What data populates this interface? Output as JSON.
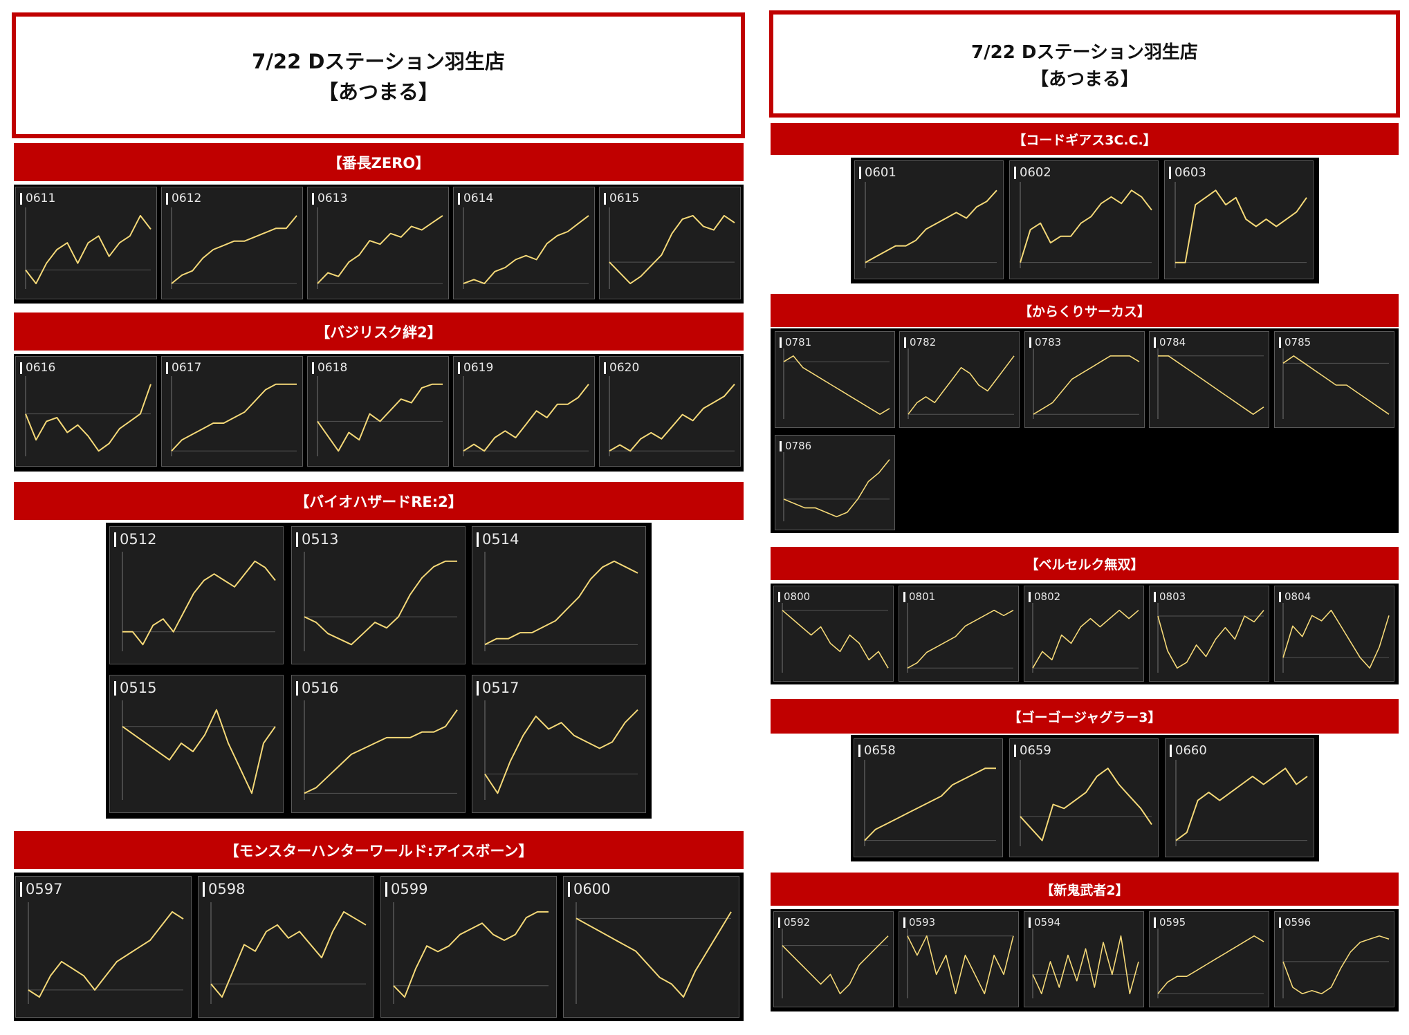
{
  "page": {
    "left_title": [
      "7/22 Dステーション羽生店",
      "【あつまる】"
    ],
    "right_title": [
      "7/22 Dステーション羽生店",
      "【あつまる】"
    ]
  },
  "colors": {
    "accent": "#c00000",
    "line": "#f5d978",
    "tile": "#1e1e1e",
    "panel": "#000000"
  },
  "chart_data": [
    {
      "type": "line",
      "title": "【番長ZERO】",
      "small_multiples": [
        {
          "label": "0611",
          "values": [
            0,
            -2,
            1,
            3,
            4,
            1,
            4,
            5,
            2,
            4,
            5,
            8,
            6
          ]
        },
        {
          "label": "0612",
          "values": [
            0,
            2,
            3,
            6,
            8,
            9,
            10,
            10,
            11,
            12,
            13,
            13,
            16
          ]
        },
        {
          "label": "0613",
          "values": [
            0,
            3,
            2,
            6,
            8,
            12,
            11,
            14,
            13,
            16,
            15,
            17,
            19
          ]
        },
        {
          "label": "0614",
          "values": [
            0,
            1,
            0,
            3,
            4,
            6,
            7,
            6,
            10,
            12,
            13,
            15,
            17
          ]
        },
        {
          "label": "0615",
          "values": [
            0,
            -3,
            -6,
            -4,
            -1,
            2,
            8,
            12,
            13,
            10,
            9,
            13,
            11
          ]
        }
      ]
    },
    {
      "type": "line",
      "title": "【バジリスク絆2】",
      "small_multiples": [
        {
          "label": "0616",
          "values": [
            0,
            -7,
            -2,
            -1,
            -5,
            -3,
            -6,
            -10,
            -8,
            -4,
            -2,
            0,
            8
          ]
        },
        {
          "label": "0617",
          "values": [
            0,
            2,
            3,
            4,
            5,
            5,
            6,
            7,
            9,
            11,
            12,
            12,
            12
          ]
        },
        {
          "label": "0618",
          "values": [
            0,
            -4,
            -8,
            -3,
            -5,
            2,
            0,
            3,
            6,
            5,
            9,
            10,
            10
          ]
        },
        {
          "label": "0619",
          "values": [
            0,
            1,
            0,
            2,
            3,
            2,
            4,
            6,
            5,
            7,
            7,
            8,
            10
          ]
        },
        {
          "label": "0620",
          "values": [
            0,
            1,
            0,
            2,
            3,
            2,
            4,
            6,
            5,
            7,
            8,
            9,
            11
          ]
        }
      ]
    },
    {
      "type": "line",
      "title": "【バイオハザードRE:2】",
      "small_multiples": [
        {
          "label": "0512",
          "values": [
            0,
            0,
            -2,
            1,
            2,
            0,
            3,
            6,
            8,
            9,
            8,
            7,
            9,
            11,
            10,
            8
          ]
        },
        {
          "label": "0513",
          "values": [
            0,
            -1,
            -3,
            -4,
            -5,
            -3,
            -1,
            -2,
            0,
            4,
            7,
            9,
            10,
            10
          ]
        },
        {
          "label": "0514",
          "values": [
            0,
            1,
            1,
            2,
            2,
            3,
            4,
            6,
            8,
            11,
            13,
            14,
            13,
            12
          ]
        },
        {
          "label": "0515",
          "values": [
            0,
            -1,
            -2,
            -3,
            -4,
            -2,
            -3,
            -1,
            2,
            -2,
            -5,
            -8,
            -2,
            0
          ]
        },
        {
          "label": "0516",
          "values": [
            0,
            1,
            3,
            5,
            7,
            8,
            9,
            10,
            10,
            10,
            11,
            11,
            12,
            15
          ]
        },
        {
          "label": "0517",
          "values": [
            0,
            -3,
            2,
            6,
            9,
            7,
            8,
            6,
            5,
            4,
            5,
            8,
            10
          ]
        }
      ]
    },
    {
      "type": "line",
      "title": "【モンスターハンターワールド:アイスボーン】",
      "small_multiples": [
        {
          "label": "0597",
          "values": [
            0,
            -1,
            2,
            4,
            3,
            2,
            0,
            2,
            4,
            5,
            6,
            7,
            9,
            11,
            10
          ]
        },
        {
          "label": "0598",
          "values": [
            0,
            -2,
            2,
            6,
            5,
            8,
            9,
            7,
            8,
            6,
            4,
            8,
            11,
            10,
            9
          ]
        },
        {
          "label": "0599",
          "values": [
            0,
            -2,
            3,
            7,
            6,
            7,
            9,
            10,
            11,
            9,
            8,
            9,
            12,
            13,
            13
          ]
        },
        {
          "label": "0600",
          "values": [
            0,
            -1,
            -2,
            -3,
            -4,
            -5,
            -7,
            -9,
            -10,
            -12,
            -8,
            -5,
            -2,
            1
          ]
        }
      ]
    },
    {
      "type": "line",
      "title": "【コードギアス3C.C.】",
      "small_multiples": [
        {
          "label": "0601",
          "values": [
            0,
            1,
            2,
            3,
            3,
            4,
            6,
            7,
            8,
            9,
            8,
            10,
            11,
            13
          ]
        },
        {
          "label": "0602",
          "values": [
            0,
            5,
            6,
            3,
            4,
            4,
            6,
            7,
            9,
            10,
            9,
            11,
            10,
            8
          ]
        },
        {
          "label": "0603",
          "values": [
            0,
            0,
            8,
            9,
            10,
            8,
            9,
            6,
            5,
            6,
            5,
            6,
            7,
            9
          ]
        }
      ]
    },
    {
      "type": "line",
      "title": "【からくりサーカス】",
      "small_multiples": [
        {
          "label": "0781",
          "values": [
            0,
            1,
            -1,
            -2,
            -3,
            -4,
            -5,
            -6,
            -7,
            -8,
            -9,
            -8
          ]
        },
        {
          "label": "0782",
          "values": [
            0,
            2,
            3,
            2,
            4,
            6,
            8,
            7,
            5,
            4,
            6,
            8,
            10
          ]
        },
        {
          "label": "0783",
          "values": [
            0,
            1,
            2,
            4,
            6,
            7,
            8,
            9,
            10,
            10,
            10,
            9
          ]
        },
        {
          "label": "0784",
          "values": [
            0,
            0,
            -1,
            -2,
            -3,
            -4,
            -5,
            -6,
            -7,
            -8,
            -7
          ]
        },
        {
          "label": "0785",
          "values": [
            0,
            1,
            0,
            -1,
            -2,
            -3,
            -3,
            -4,
            -5,
            -6,
            -7
          ]
        },
        {
          "label": "0786",
          "values": [
            0,
            -1,
            -2,
            -2,
            -3,
            -4,
            -3,
            0,
            4,
            6,
            9
          ]
        }
      ]
    },
    {
      "type": "line",
      "title": "【ベルセルク無双】",
      "small_multiples": [
        {
          "label": "0800",
          "values": [
            0,
            -1,
            -2,
            -3,
            -2,
            -4,
            -5,
            -3,
            -4,
            -6,
            -5,
            -7
          ]
        },
        {
          "label": "0801",
          "values": [
            0,
            1,
            3,
            4,
            5,
            6,
            8,
            9,
            10,
            11,
            10,
            11
          ]
        },
        {
          "label": "0802",
          "values": [
            0,
            2,
            1,
            4,
            3,
            5,
            6,
            5,
            6,
            7,
            6,
            7
          ]
        },
        {
          "label": "0803",
          "values": [
            0,
            -6,
            -9,
            -8,
            -5,
            -7,
            -4,
            -2,
            -4,
            0,
            -1,
            1
          ]
        },
        {
          "label": "0804",
          "values": [
            0,
            6,
            4,
            8,
            7,
            9,
            6,
            3,
            0,
            -2,
            2,
            8
          ]
        }
      ]
    },
    {
      "type": "line",
      "title": "【ゴーゴージャグラー3】",
      "small_multiples": [
        {
          "label": "0658",
          "values": [
            0,
            2,
            3,
            4,
            5,
            6,
            7,
            8,
            10,
            11,
            12,
            13,
            13
          ]
        },
        {
          "label": "0659",
          "values": [
            0,
            -3,
            -6,
            3,
            2,
            4,
            6,
            10,
            12,
            8,
            5,
            2,
            -2
          ]
        },
        {
          "label": "0660",
          "values": [
            0,
            1,
            5,
            6,
            5,
            6,
            7,
            8,
            7,
            8,
            9,
            7,
            8
          ]
        }
      ]
    },
    {
      "type": "line",
      "title": "【新鬼武者2】",
      "small_multiples": [
        {
          "label": "0592",
          "values": [
            0,
            -1,
            -2,
            -3,
            -4,
            -3,
            -5,
            -4,
            -2,
            -1,
            0,
            1
          ]
        },
        {
          "label": "0593",
          "values": [
            0,
            -1,
            0,
            -2,
            -1,
            -3,
            -1,
            -2,
            -3,
            -1,
            -2,
            0
          ]
        },
        {
          "label": "0594",
          "values": [
            0,
            -3,
            2,
            -2,
            3,
            -1,
            4,
            -2,
            5,
            0,
            6,
            -3,
            2
          ]
        },
        {
          "label": "0595",
          "values": [
            0,
            2,
            3,
            3,
            4,
            5,
            6,
            7,
            8,
            9,
            10,
            9
          ]
        },
        {
          "label": "0596",
          "values": [
            0,
            -8,
            -10,
            -9,
            -10,
            -8,
            -2,
            3,
            6,
            7,
            8,
            7
          ]
        }
      ]
    }
  ]
}
